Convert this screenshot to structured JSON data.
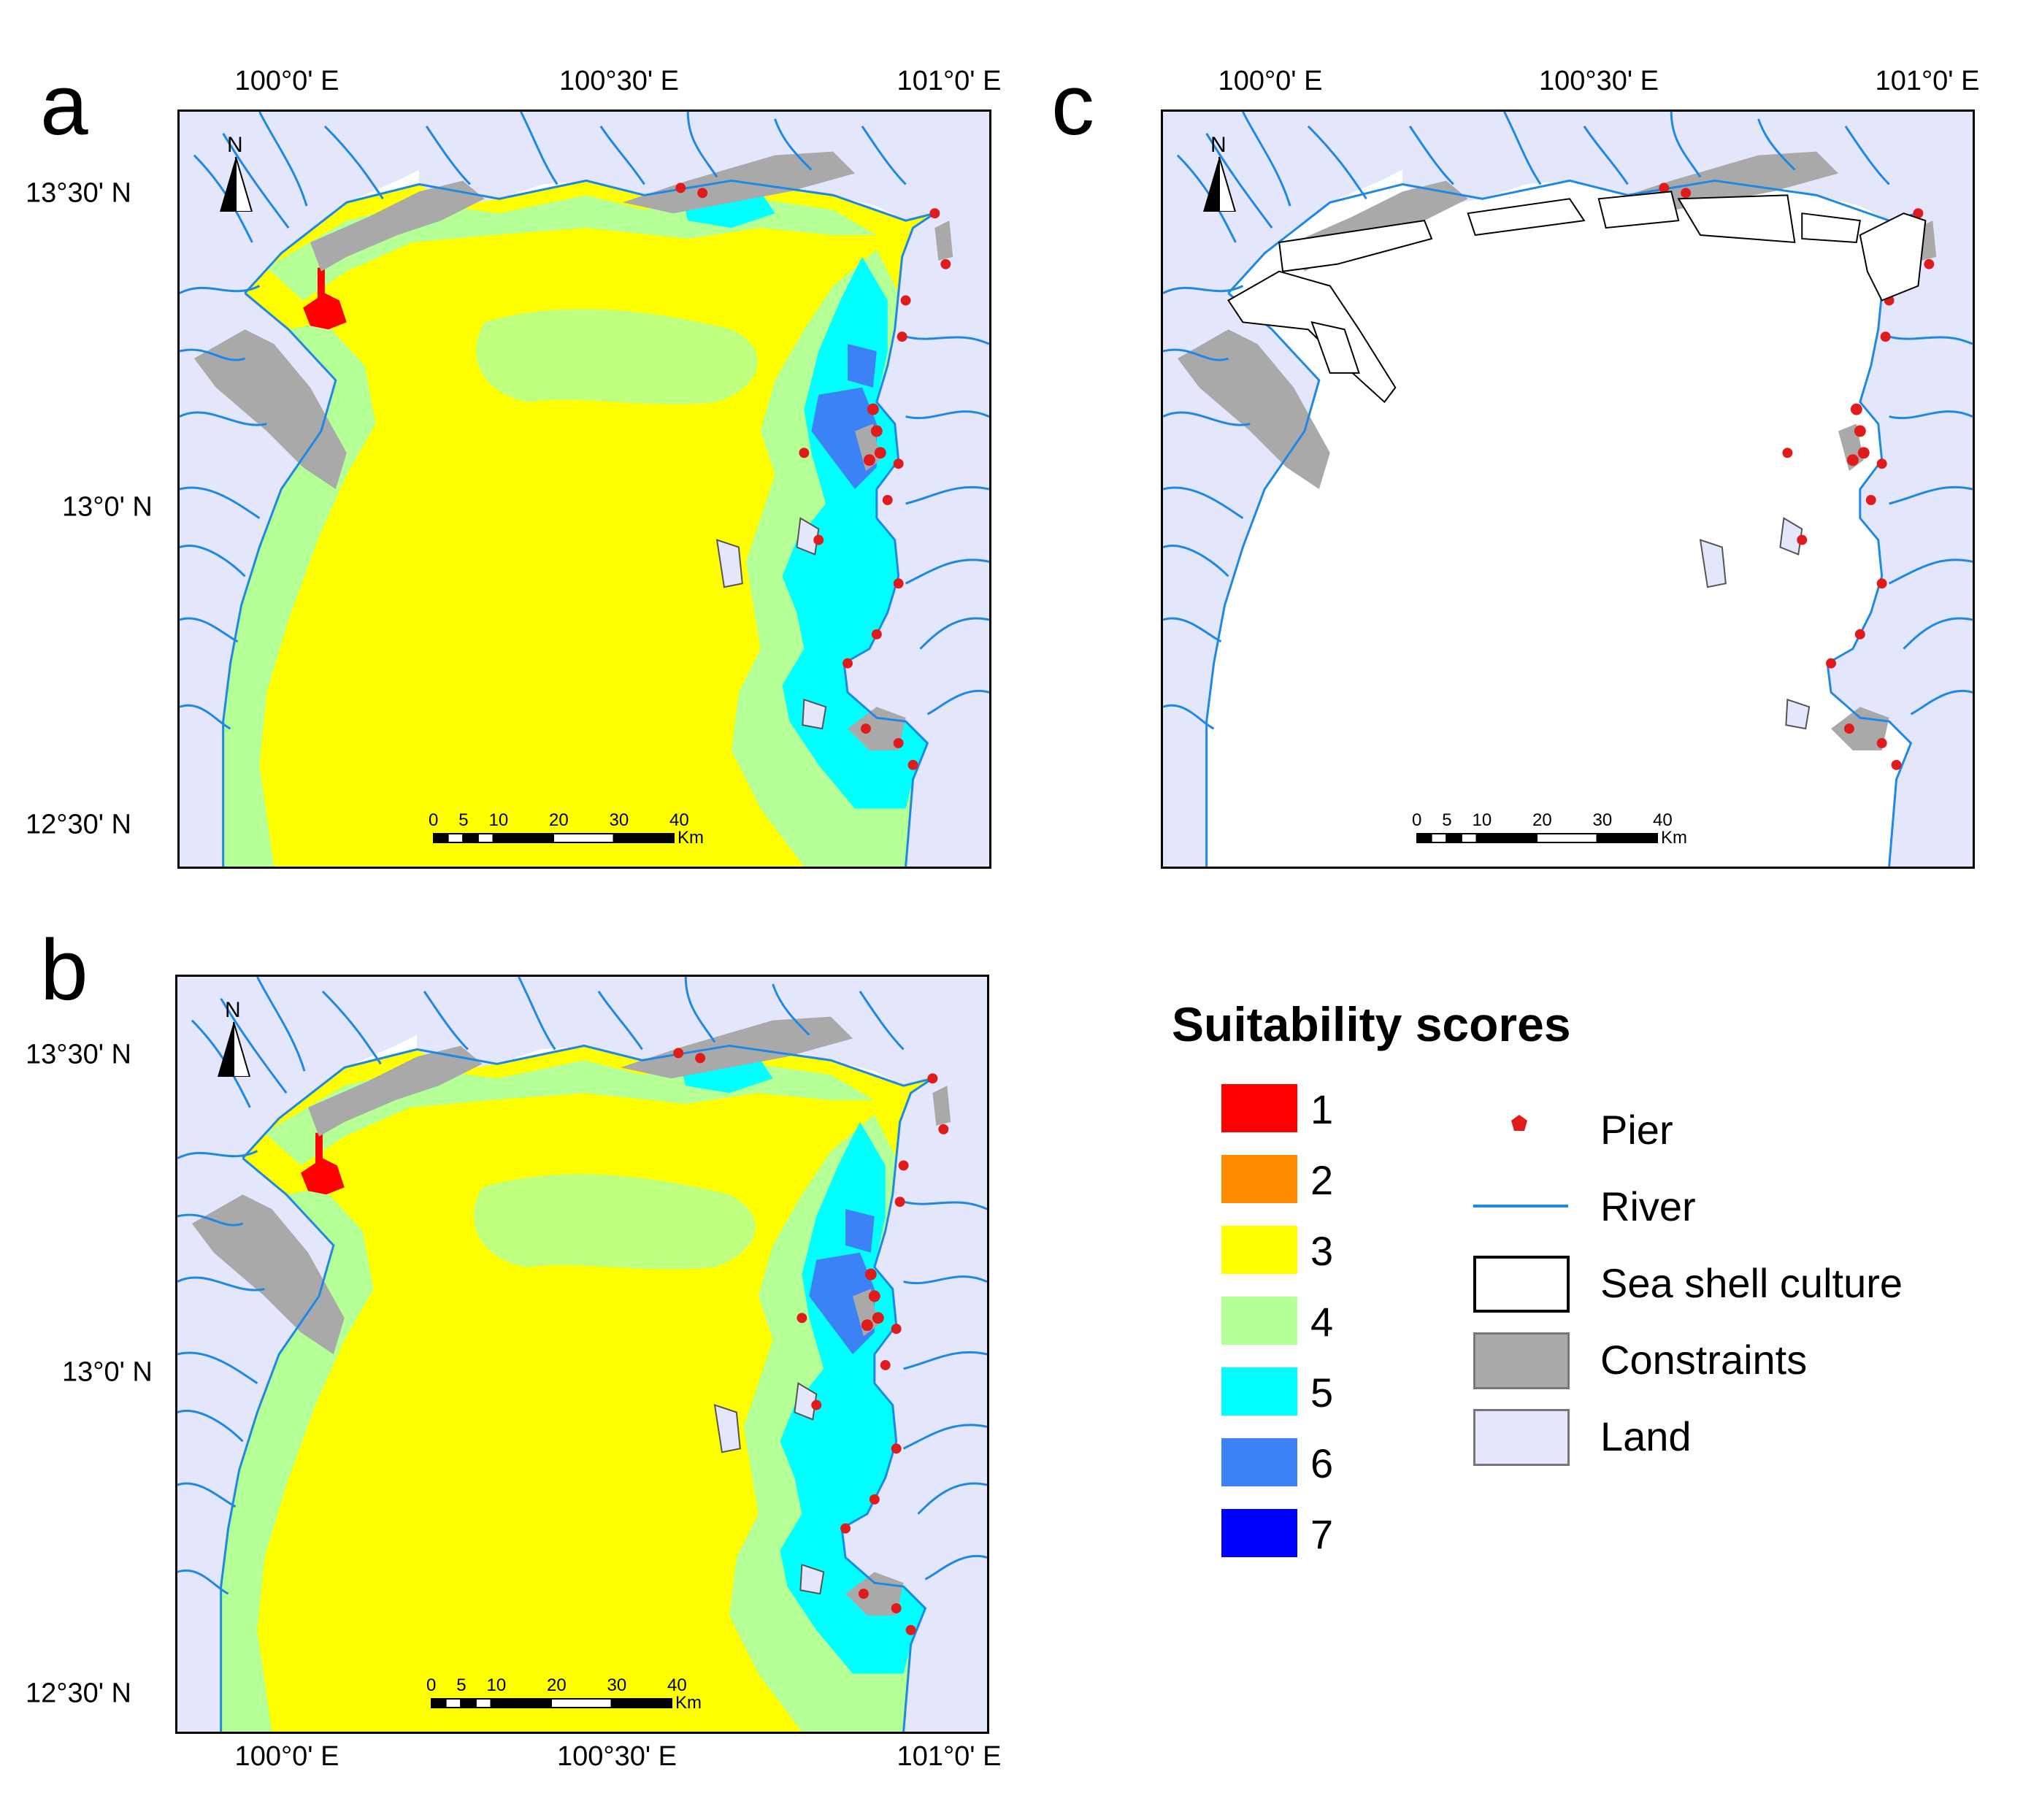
{
  "panels": [
    {
      "letter": "a",
      "axis": {
        "top": [
          "100°0' E",
          "100°30' E",
          "101°0' E"
        ],
        "left": [
          "13°30' N",
          "13°0' N",
          "12°30' N"
        ]
      },
      "scalebar": {
        "ticks": [
          "0",
          "5",
          "10",
          "20",
          "30",
          "40"
        ],
        "unit": "Km"
      }
    },
    {
      "letter": "b",
      "axis": {
        "bottom": [
          "100°0' E",
          "100°30' E",
          "101°0' E"
        ],
        "left": [
          "13°30' N",
          "13°0' N",
          "12°30' N"
        ]
      },
      "scalebar": {
        "ticks": [
          "0",
          "5",
          "10",
          "20",
          "30",
          "40"
        ],
        "unit": "Km"
      }
    },
    {
      "letter": "c",
      "axis": {
        "top": [
          "100°0' E",
          "100°30' E",
          "101°0' E"
        ]
      },
      "scalebar": {
        "ticks": [
          "0",
          "5",
          "10",
          "20",
          "30",
          "40"
        ],
        "unit": "Km"
      }
    }
  ],
  "north_label": "N",
  "legend": {
    "title": "Suitability scores",
    "scores": [
      {
        "label": "1",
        "color": "#ff0000"
      },
      {
        "label": "2",
        "color": "#ff8c00"
      },
      {
        "label": "3",
        "color": "#ffff00"
      },
      {
        "label": "4",
        "color": "#b4ff96"
      },
      {
        "label": "5",
        "color": "#00ffff"
      },
      {
        "label": "6",
        "color": "#3c82f5"
      },
      {
        "label": "7",
        "color": "#0000ff"
      }
    ],
    "symbols": [
      {
        "label": "Pier",
        "color": "#e01b1b"
      },
      {
        "label": "River",
        "color": "#1e88e5"
      },
      {
        "label": "Sea shell culture",
        "color": "#ffffff"
      },
      {
        "label": "Constraints",
        "color": "#a9a9a9"
      },
      {
        "label": "Land",
        "color": "#e4e6fb"
      }
    ]
  }
}
